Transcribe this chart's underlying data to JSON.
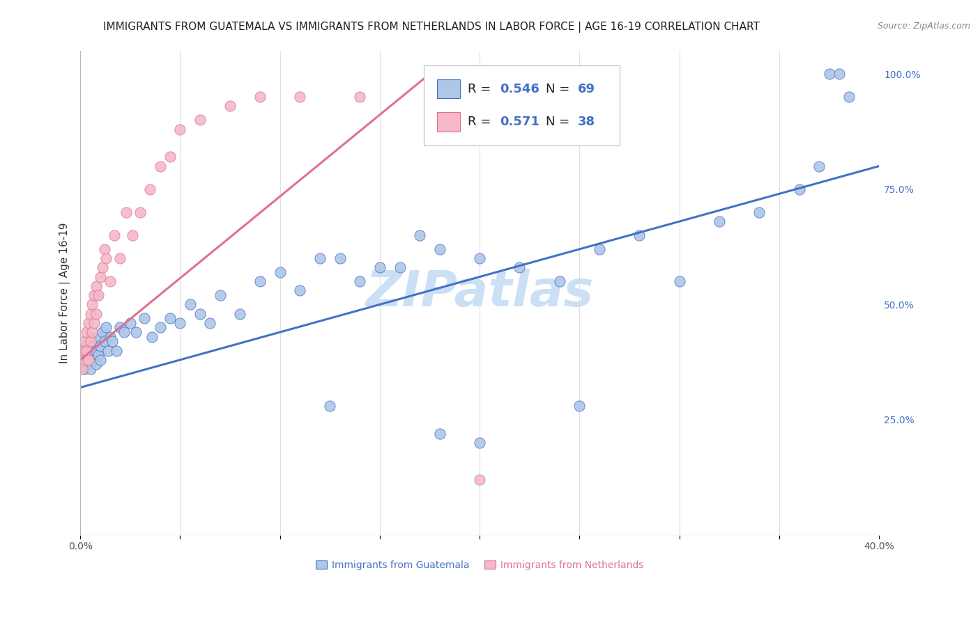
{
  "title": "IMMIGRANTS FROM GUATEMALA VS IMMIGRANTS FROM NETHERLANDS IN LABOR FORCE | AGE 16-19 CORRELATION CHART",
  "source": "Source: ZipAtlas.com",
  "ylabel": "In Labor Force | Age 16-19",
  "watermark": "ZIPatlas",
  "xlim": [
    0.0,
    0.4
  ],
  "ylim": [
    0.0,
    1.05
  ],
  "xticks": [
    0.0,
    0.05,
    0.1,
    0.15,
    0.2,
    0.25,
    0.3,
    0.35,
    0.4
  ],
  "xticklabels": [
    "0.0%",
    "",
    "",
    "",
    "",
    "",
    "",
    "",
    "40.0%"
  ],
  "ytick_right": [
    0.25,
    0.5,
    0.75,
    1.0
  ],
  "ytick_right_labels": [
    "25.0%",
    "50.0%",
    "75.0%",
    "100.0%"
  ],
  "guatemala_fill": "#aec6e8",
  "guatemala_edge": "#4472c4",
  "netherlands_fill": "#f4b8c8",
  "netherlands_edge": "#e07090",
  "trendline_blue": "#4472c4",
  "trendline_pink": "#e07090",
  "bg_color": "#ffffff",
  "grid_color": "#e0e0e0",
  "title_fontsize": 11,
  "axis_label_fontsize": 11,
  "tick_fontsize": 10,
  "legend_fontsize": 13,
  "watermark_fontsize": 52,
  "watermark_color": "#cce0f5",
  "source_fontsize": 9,
  "legend_R_blue": "R = ",
  "legend_val_blue": "0.546",
  "legend_N_label_blue": "N = ",
  "legend_N_val_blue": "69",
  "legend_R_pink": "R = ",
  "legend_val_pink": "0.571",
  "legend_N_label_pink": "N = ",
  "legend_N_val_pink": "38",
  "guatemala_x": [
    0.001,
    0.002,
    0.002,
    0.003,
    0.003,
    0.003,
    0.004,
    0.004,
    0.005,
    0.005,
    0.005,
    0.006,
    0.006,
    0.007,
    0.007,
    0.008,
    0.008,
    0.009,
    0.009,
    0.01,
    0.01,
    0.011,
    0.012,
    0.013,
    0.014,
    0.015,
    0.016,
    0.018,
    0.02,
    0.022,
    0.025,
    0.028,
    0.032,
    0.036,
    0.04,
    0.045,
    0.05,
    0.055,
    0.06,
    0.065,
    0.07,
    0.08,
    0.09,
    0.1,
    0.11,
    0.12,
    0.14,
    0.16,
    0.18,
    0.2,
    0.22,
    0.24,
    0.26,
    0.28,
    0.3,
    0.32,
    0.34,
    0.36,
    0.37,
    0.375,
    0.38,
    0.385,
    0.125,
    0.18,
    0.2,
    0.25,
    0.13,
    0.15,
    0.17
  ],
  "guatemala_y": [
    0.38,
    0.4,
    0.36,
    0.39,
    0.41,
    0.37,
    0.38,
    0.42,
    0.4,
    0.36,
    0.43,
    0.39,
    0.42,
    0.38,
    0.41,
    0.37,
    0.4,
    0.39,
    0.43,
    0.41,
    0.38,
    0.44,
    0.42,
    0.45,
    0.4,
    0.43,
    0.42,
    0.4,
    0.45,
    0.44,
    0.46,
    0.44,
    0.47,
    0.43,
    0.45,
    0.47,
    0.46,
    0.5,
    0.48,
    0.46,
    0.52,
    0.48,
    0.55,
    0.57,
    0.53,
    0.6,
    0.55,
    0.58,
    0.62,
    0.6,
    0.58,
    0.55,
    0.62,
    0.65,
    0.55,
    0.68,
    0.7,
    0.75,
    0.8,
    1.0,
    1.0,
    0.95,
    0.28,
    0.22,
    0.2,
    0.28,
    0.6,
    0.58,
    0.65
  ],
  "netherlands_x": [
    0.001,
    0.001,
    0.002,
    0.002,
    0.003,
    0.003,
    0.004,
    0.004,
    0.005,
    0.005,
    0.006,
    0.006,
    0.007,
    0.007,
    0.008,
    0.008,
    0.009,
    0.01,
    0.011,
    0.012,
    0.013,
    0.015,
    0.017,
    0.02,
    0.023,
    0.026,
    0.03,
    0.035,
    0.04,
    0.045,
    0.05,
    0.06,
    0.075,
    0.09,
    0.11,
    0.14,
    0.175,
    0.2
  ],
  "netherlands_y": [
    0.36,
    0.4,
    0.38,
    0.42,
    0.4,
    0.44,
    0.38,
    0.46,
    0.42,
    0.48,
    0.44,
    0.5,
    0.52,
    0.46,
    0.48,
    0.54,
    0.52,
    0.56,
    0.58,
    0.62,
    0.6,
    0.55,
    0.65,
    0.6,
    0.7,
    0.65,
    0.7,
    0.75,
    0.8,
    0.82,
    0.88,
    0.9,
    0.93,
    0.95,
    0.95,
    0.95,
    0.98,
    0.12
  ],
  "netherlands_trendline_x": [
    0.0,
    0.2
  ],
  "netherlands_trendline_y": [
    0.38,
    0.98
  ]
}
